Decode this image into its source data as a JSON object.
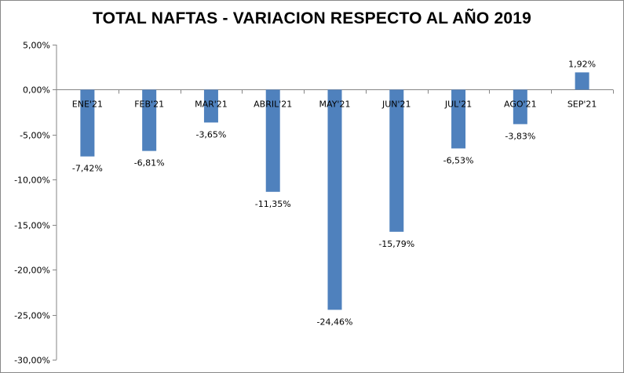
{
  "chart_data": {
    "type": "bar",
    "title": "TOTAL NAFTAS - VARIACION RESPECTO AL AÑO 2019",
    "categories": [
      "ENE'21",
      "FEB'21",
      "MAR'21",
      "ABRIL'21",
      "MAY'21",
      "JUN'21",
      "JUL'21",
      "AGO'21",
      "SEP'21"
    ],
    "values": [
      -7.42,
      -6.81,
      -3.65,
      -11.35,
      -24.46,
      -15.79,
      -6.53,
      -3.83,
      1.92
    ],
    "data_labels": [
      "-7,42%",
      "-6,81%",
      "-3,65%",
      "-11,35%",
      "-24,46%",
      "-15,79%",
      "-6,53%",
      "-3,83%",
      "1,92%"
    ],
    "ylim": [
      -30,
      5
    ],
    "yticks": [
      5,
      0,
      -5,
      -10,
      -15,
      -20,
      -25,
      -30
    ],
    "ytick_labels": [
      "5,00%",
      "0,00%",
      "-5,00%",
      "-10,00%",
      "-15,00%",
      "-20,00%",
      "-25,00%",
      "-30,00%"
    ],
    "xlabel": "",
    "ylabel": "",
    "grid": false,
    "legend": "none",
    "bar_color": "#4F81BD"
  }
}
